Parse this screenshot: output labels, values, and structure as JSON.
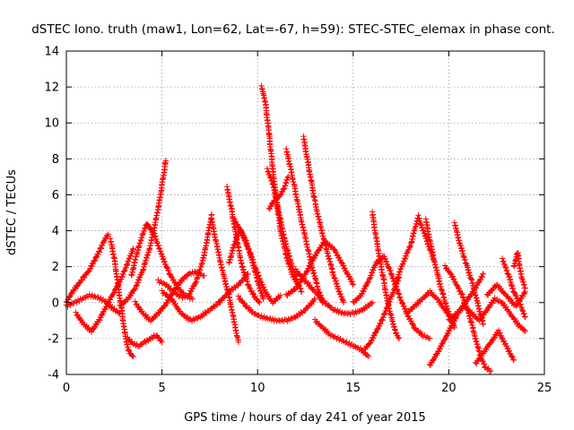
{
  "chart_data": {
    "type": "scatter",
    "title": "dSTEC Iono. truth (maw1, Lon=62, Lat=-67, h=59): STEC-STEC_elemax in phase cont.",
    "xlabel": "GPS time / hours of day 241 of year 2015",
    "ylabel": "dSTEC  / TECUs",
    "xlim": [
      0,
      25
    ],
    "ylim": [
      -4,
      14
    ],
    "x_ticks": [
      0,
      5,
      10,
      15,
      20,
      25
    ],
    "y_ticks": [
      -4,
      -2,
      0,
      2,
      4,
      6,
      8,
      10,
      12,
      14
    ],
    "x_tick_labels": [
      "0",
      "5",
      "10",
      "15",
      "20",
      "25"
    ],
    "y_tick_labels": [
      "-4",
      "-2",
      "0",
      "2",
      "4",
      "6",
      "8",
      "10",
      "12",
      "14"
    ],
    "grid": true,
    "marker": "+",
    "color": "#ff0000",
    "series": [
      {
        "x": [
          0.0,
          0.3,
          0.6,
          0.9,
          1.2,
          1.5,
          1.8,
          2.0,
          2.2
        ],
        "y": [
          0.0,
          0.6,
          1.0,
          1.4,
          1.8,
          2.4,
          3.0,
          3.5,
          3.8
        ]
      },
      {
        "x": [
          0.5,
          0.9,
          1.3,
          1.7,
          2.1,
          2.5,
          2.9,
          3.2,
          3.5
        ],
        "y": [
          -0.6,
          -1.2,
          -1.6,
          -1.0,
          -0.2,
          0.6,
          1.4,
          2.2,
          3.0
        ]
      },
      {
        "x": [
          0.0,
          0.4,
          0.8,
          1.2,
          1.6,
          2.0,
          2.4,
          2.8
        ],
        "y": [
          -0.2,
          0.0,
          0.2,
          0.4,
          0.3,
          0.1,
          -0.3,
          -0.6
        ]
      },
      {
        "x": [
          2.3,
          2.5,
          2.7,
          2.9,
          3.1,
          3.3,
          3.5
        ],
        "y": [
          3.5,
          2.5,
          1.0,
          -0.5,
          -2.0,
          -2.8,
          -3.0
        ]
      },
      {
        "x": [
          3.2,
          3.5,
          3.8,
          4.1,
          4.4,
          4.7,
          5.0
        ],
        "y": [
          -2.0,
          -2.3,
          -2.4,
          -2.2,
          -2.0,
          -1.8,
          -2.2
        ]
      },
      {
        "x": [
          2.8,
          3.2,
          3.6,
          4.0,
          4.4,
          4.8,
          5.2
        ],
        "y": [
          -0.2,
          0.2,
          0.8,
          1.8,
          3.2,
          5.2,
          7.9
        ]
      },
      {
        "x": [
          3.4,
          3.8,
          4.2,
          4.6,
          5.0,
          5.4,
          5.8,
          6.2,
          6.6
        ],
        "y": [
          1.5,
          3.2,
          4.4,
          3.8,
          2.6,
          1.6,
          0.9,
          0.4,
          0.2
        ]
      },
      {
        "x": [
          3.6,
          4.0,
          4.4,
          4.8,
          5.2,
          5.6,
          6.0,
          6.4,
          6.8,
          7.2
        ],
        "y": [
          0.0,
          -0.6,
          -1.0,
          -0.6,
          -0.1,
          0.6,
          1.2,
          1.6,
          1.7,
          1.5
        ]
      },
      {
        "x": [
          4.8,
          5.2,
          5.6,
          6.0,
          6.4,
          6.8,
          7.2,
          7.6
        ],
        "y": [
          1.2,
          1.0,
          0.6,
          0.3,
          0.4,
          1.2,
          2.6,
          4.9
        ]
      },
      {
        "x": [
          5.0,
          5.5,
          6.0,
          6.5,
          7.0,
          7.5,
          8.0,
          8.5,
          9.0,
          9.5
        ],
        "y": [
          0.6,
          0.2,
          -0.6,
          -1.0,
          -0.8,
          -0.4,
          0.0,
          0.6,
          1.0,
          1.6
        ]
      },
      {
        "x": [
          7.6,
          7.9,
          8.2,
          8.5,
          8.8,
          9.0
        ],
        "y": [
          4.6,
          3.0,
          1.6,
          0.4,
          -1.2,
          -2.2
        ]
      },
      {
        "x": [
          8.4,
          8.6,
          8.8,
          9.0,
          9.2,
          9.5,
          9.8,
          10.1
        ],
        "y": [
          6.4,
          5.4,
          4.2,
          3.0,
          2.0,
          1.0,
          0.4,
          0.0
        ]
      },
      {
        "x": [
          8.5,
          8.8,
          9.1,
          9.4,
          9.7,
          10.0,
          10.3
        ],
        "y": [
          2.2,
          3.3,
          4.1,
          3.4,
          2.4,
          1.2,
          0.2
        ]
      },
      {
        "x": [
          8.8,
          9.2,
          9.6,
          10.0,
          10.4,
          10.8,
          11.2
        ],
        "y": [
          4.6,
          3.8,
          2.8,
          1.6,
          0.6,
          0.0,
          0.4
        ]
      },
      {
        "x": [
          9.0,
          9.4,
          9.8,
          10.2,
          10.6,
          11.0,
          11.5,
          12.0,
          12.5,
          13.0
        ],
        "y": [
          0.3,
          -0.2,
          -0.6,
          -0.8,
          -0.9,
          -1.0,
          -1.0,
          -0.8,
          -0.4,
          0.2
        ]
      },
      {
        "x": [
          10.2,
          10.4,
          10.6,
          10.8,
          11.0,
          11.2,
          11.5,
          11.8,
          12.1
        ],
        "y": [
          12.0,
          11.2,
          9.4,
          7.4,
          5.6,
          4.0,
          2.6,
          1.6,
          1.0
        ]
      },
      {
        "x": [
          10.5,
          10.8,
          11.0,
          11.2,
          11.4,
          11.7,
          12.0,
          12.3
        ],
        "y": [
          7.4,
          6.6,
          5.6,
          4.6,
          3.6,
          2.4,
          1.4,
          0.6
        ]
      },
      {
        "x": [
          10.6,
          10.8,
          11.0,
          11.2,
          11.4,
          11.6
        ],
        "y": [
          5.2,
          5.6,
          5.8,
          6.0,
          6.4,
          7.0
        ]
      },
      {
        "x": [
          11.5,
          11.7,
          11.9,
          12.2,
          12.5,
          12.8,
          13.1,
          13.4
        ],
        "y": [
          8.5,
          7.6,
          6.6,
          5.0,
          3.6,
          2.2,
          1.0,
          0.0
        ]
      },
      {
        "x": [
          12.4,
          12.6,
          12.8,
          13.0,
          13.3,
          13.6,
          13.9,
          14.2,
          14.5
        ],
        "y": [
          9.2,
          8.0,
          6.8,
          5.6,
          4.2,
          3.0,
          1.8,
          0.8,
          0.0
        ]
      },
      {
        "x": [
          11.5,
          12.0,
          12.5,
          13.0,
          13.5,
          14.0,
          14.5,
          15.0
        ],
        "y": [
          0.4,
          0.8,
          1.6,
          2.6,
          3.4,
          3.0,
          2.0,
          1.0
        ]
      },
      {
        "x": [
          13.0,
          13.4,
          13.8,
          14.2,
          14.6,
          15.0,
          15.4,
          15.8
        ],
        "y": [
          -1.0,
          -1.4,
          -1.8,
          -2.0,
          -2.2,
          -2.4,
          -2.6,
          -3.0
        ]
      },
      {
        "x": [
          12.0,
          12.5,
          13.0,
          13.5,
          14.0,
          14.5,
          15.0,
          15.5,
          16.0
        ],
        "y": [
          1.8,
          1.2,
          0.6,
          0.0,
          -0.4,
          -0.6,
          -0.6,
          -0.4,
          0.0
        ]
      },
      {
        "x": [
          15.0,
          15.4,
          15.8,
          16.2,
          16.6,
          17.0,
          17.4,
          17.8,
          18.2,
          18.6,
          19.0
        ],
        "y": [
          0.0,
          0.4,
          1.2,
          2.2,
          2.6,
          1.6,
          0.4,
          -0.6,
          -1.4,
          -1.8,
          -2.0
        ]
      },
      {
        "x": [
          15.6,
          15.9,
          16.2,
          16.5,
          16.8,
          17.1,
          17.4
        ],
        "y": [
          -2.6,
          -2.2,
          -1.6,
          -1.0,
          -0.2,
          0.6,
          1.4
        ]
      },
      {
        "x": [
          16.0,
          16.2,
          16.4,
          16.6,
          16.8,
          17.0,
          17.2,
          17.4
        ],
        "y": [
          5.0,
          3.6,
          2.4,
          1.2,
          0.0,
          -0.8,
          -1.6,
          -2.0
        ]
      },
      {
        "x": [
          17.2,
          17.6,
          18.0,
          18.4,
          18.8,
          19.2
        ],
        "y": [
          1.0,
          2.2,
          3.2,
          4.8,
          3.6,
          2.4
        ]
      },
      {
        "x": [
          17.8,
          18.2,
          18.6,
          19.0,
          19.4,
          19.8,
          20.2
        ],
        "y": [
          -0.6,
          -0.2,
          0.2,
          0.6,
          0.2,
          -0.4,
          -1.0
        ]
      },
      {
        "x": [
          18.8,
          19.1,
          19.4,
          19.7,
          20.0,
          20.3
        ],
        "y": [
          4.6,
          3.0,
          1.6,
          0.4,
          -0.6,
          -1.4
        ]
      },
      {
        "x": [
          19.0,
          19.4,
          19.8,
          20.2,
          20.6,
          21.0,
          21.4,
          21.8
        ],
        "y": [
          -3.5,
          -2.8,
          -2.0,
          -1.2,
          -0.4,
          0.2,
          0.8,
          1.6
        ]
      },
      {
        "x": [
          19.8,
          20.1,
          20.4,
          20.7,
          21.0,
          21.3,
          21.6,
          21.9,
          22.2
        ],
        "y": [
          2.0,
          1.6,
          1.0,
          0.4,
          -0.4,
          -1.6,
          -2.8,
          -3.6,
          -3.8
        ]
      },
      {
        "x": [
          20.3,
          20.6,
          20.9,
          21.2,
          21.5,
          21.8
        ],
        "y": [
          4.4,
          3.2,
          2.2,
          1.2,
          0.0,
          -1.2
        ]
      },
      {
        "x": [
          20.0,
          20.4,
          20.8,
          21.2,
          21.6,
          22.0,
          22.4,
          22.8,
          23.2,
          23.6,
          24.0
        ],
        "y": [
          -1.0,
          -0.6,
          -0.2,
          -0.6,
          -1.0,
          -0.4,
          0.2,
          0.0,
          -0.6,
          -1.2,
          -1.6
        ]
      },
      {
        "x": [
          21.4,
          21.8,
          22.2,
          22.6,
          23.0,
          23.4
        ],
        "y": [
          -3.4,
          -2.8,
          -2.2,
          -1.6,
          -2.4,
          -3.2
        ]
      },
      {
        "x": [
          22.8,
          23.1,
          23.4,
          23.7,
          24.0
        ],
        "y": [
          2.4,
          1.6,
          0.6,
          0.0,
          -0.8
        ]
      },
      {
        "x": [
          22.0,
          22.5,
          23.0,
          23.5,
          24.0
        ],
        "y": [
          0.4,
          1.0,
          0.4,
          -0.2,
          0.6
        ]
      },
      {
        "x": [
          23.4,
          23.6,
          23.8,
          24.0
        ],
        "y": [
          2.0,
          2.8,
          1.4,
          0.8
        ]
      }
    ]
  }
}
